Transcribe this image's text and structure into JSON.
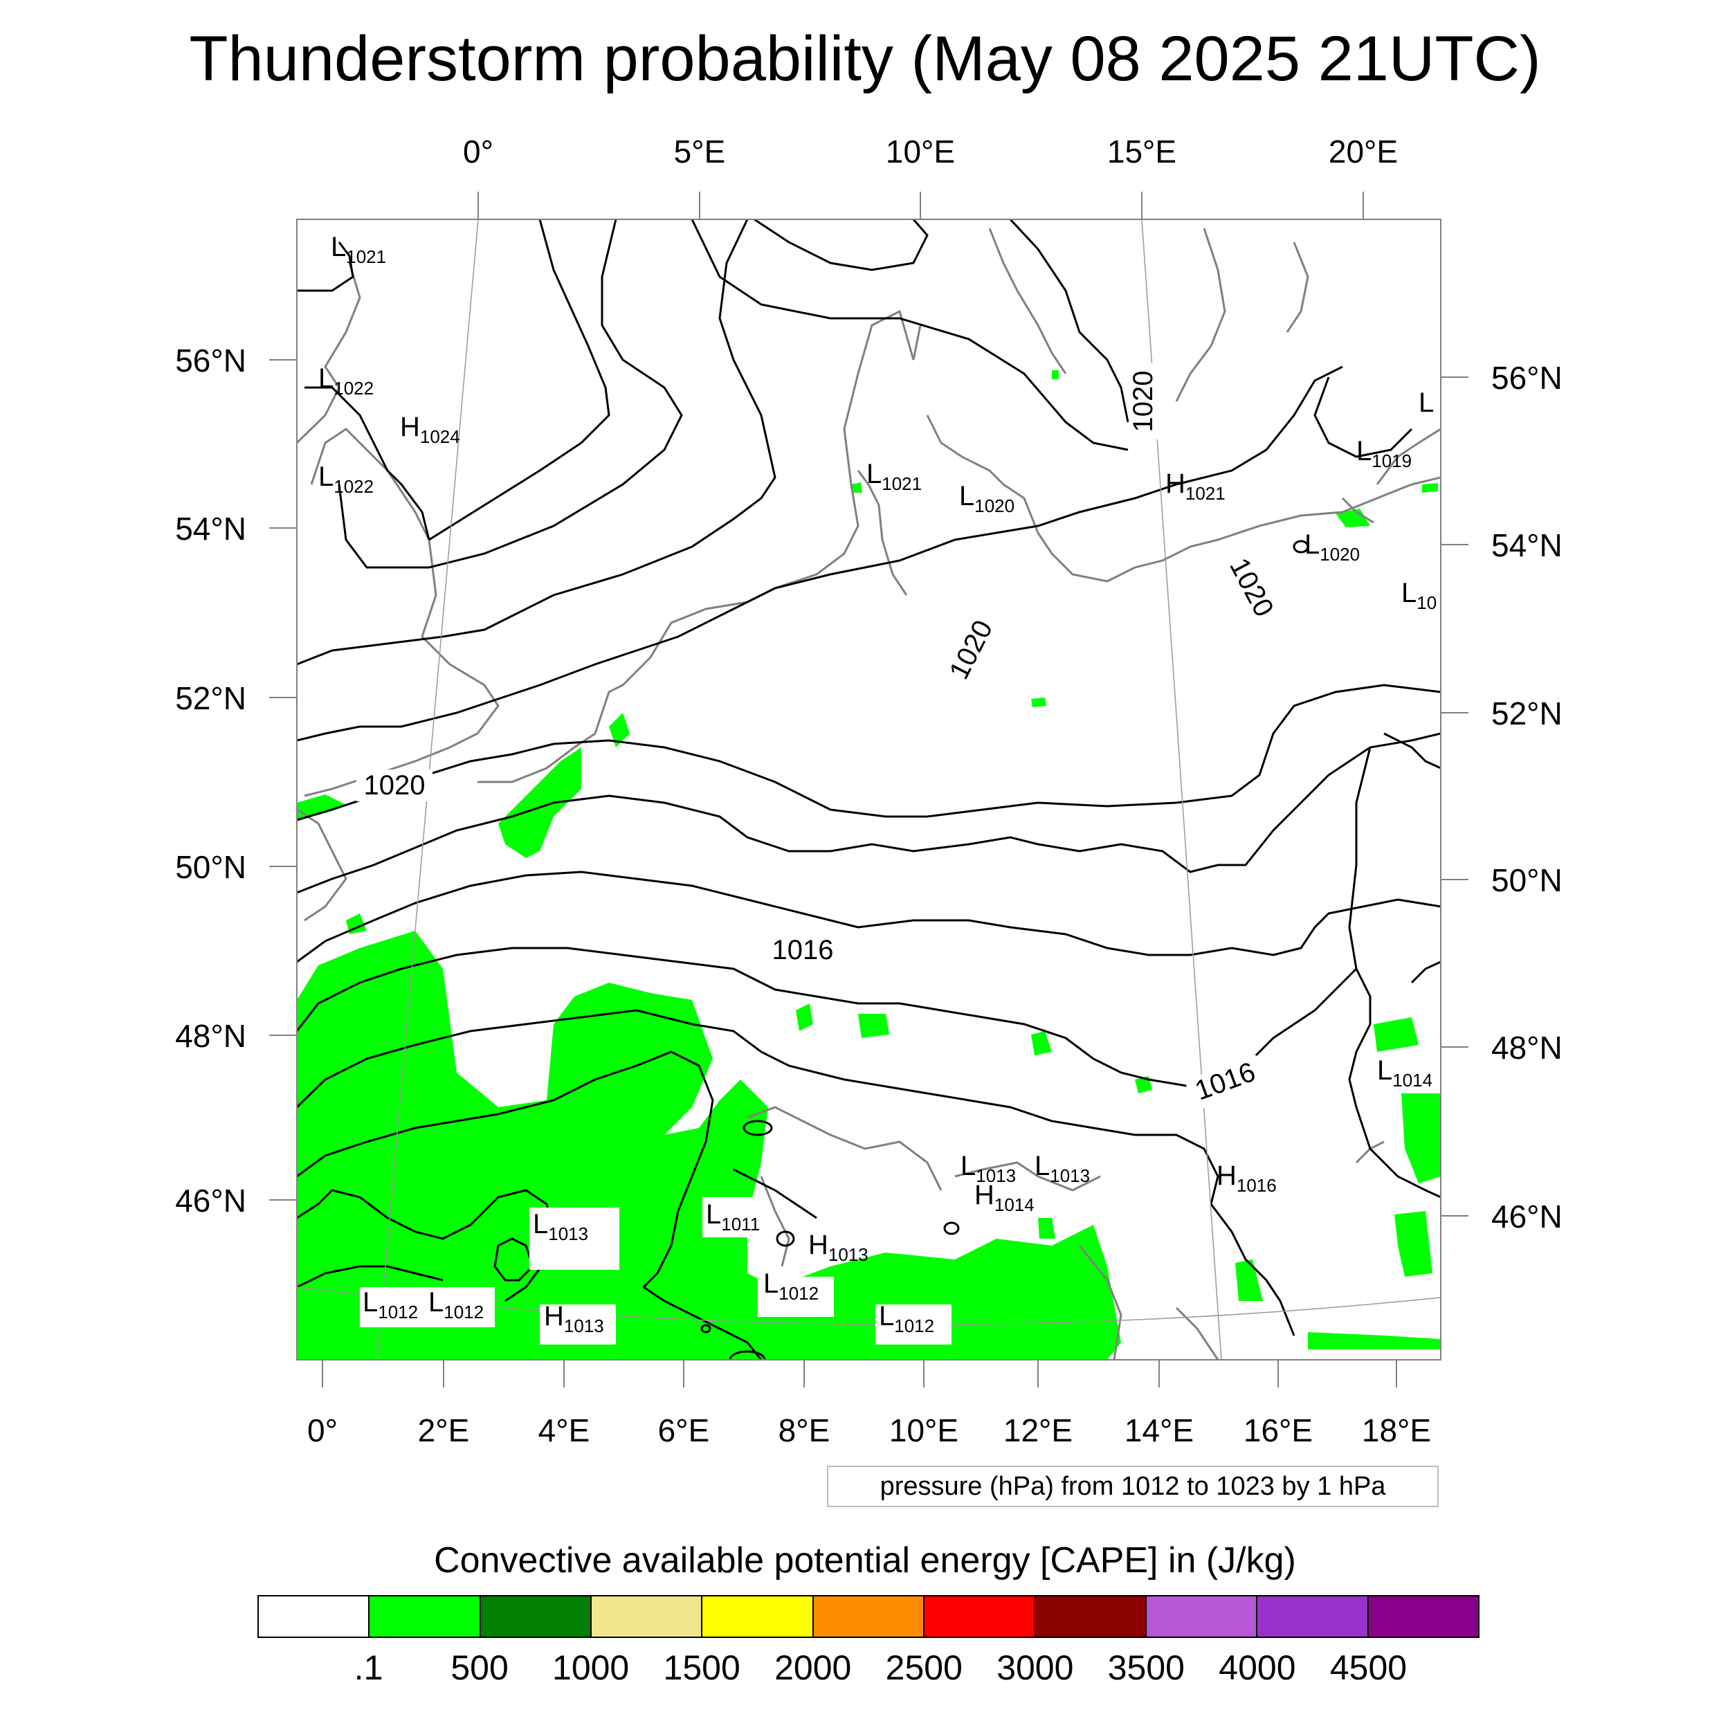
{
  "title": "Thunderstorm probability (May 08 2025 21UTC)",
  "top_lon_labels": [
    "0°",
    "5°E",
    "10°E",
    "15°E",
    "20°E"
  ],
  "bottom_lon_labels": [
    "0°",
    "2°E",
    "4°E",
    "6°E",
    "8°E",
    "10°E",
    "12°E",
    "14°E",
    "16°E",
    "18°E"
  ],
  "left_lat_labels": [
    "56°N",
    "54°N",
    "52°N",
    "50°N",
    "48°N",
    "46°N"
  ],
  "right_lat_labels": [
    "56°N",
    "54°N",
    "52°N",
    "50°N",
    "48°N",
    "46°N"
  ],
  "pressure_systems": [
    {
      "type": "L",
      "value": "1021"
    },
    {
      "type": "L",
      "value": "1022"
    },
    {
      "type": "H",
      "value": "1024"
    },
    {
      "type": "L",
      "value": "1022"
    },
    {
      "type": "L",
      "value": "1021"
    },
    {
      "type": "L",
      "value": "1020"
    },
    {
      "type": "H",
      "value": "1021"
    },
    {
      "type": "L",
      "value": "1019"
    },
    {
      "type": "L",
      "value": "1020"
    },
    {
      "type": "L",
      "value": "10"
    },
    {
      "type": "L",
      "value": ""
    },
    {
      "type": "L",
      "value": "1014"
    },
    {
      "type": "H",
      "value": "1016"
    },
    {
      "type": "L",
      "value": "1013"
    },
    {
      "type": "L",
      "value": "1013"
    },
    {
      "type": "H",
      "value": "1014"
    },
    {
      "type": "L",
      "value": "1011"
    },
    {
      "type": "H",
      "value": "1013"
    },
    {
      "type": "L",
      "value": "1013"
    },
    {
      "type": "L",
      "value": "1012"
    },
    {
      "type": "L",
      "value": "1012"
    },
    {
      "type": "L",
      "value": "1012"
    },
    {
      "type": "H",
      "value": "1013"
    },
    {
      "type": "L",
      "value": "1012"
    }
  ],
  "contour_labels": [
    "1020",
    "1020",
    "1020",
    "1020",
    "1016",
    "1016"
  ],
  "contour_info": "pressure (hPa) from 1012 to 1023 by 1 hPa",
  "legend_title": "Convective available potential energy [CAPE] in (J/kg)",
  "colorbar": {
    "colors": [
      "#ffffff",
      "#00ff00",
      "#007f00",
      "#f0e68c",
      "#ffff00",
      "#ff8c00",
      "#ff0000",
      "#8b0000",
      "#b657d6",
      "#9932cc",
      "#8b008b"
    ],
    "labels": [
      ".1",
      "500",
      "1000",
      "1500",
      "2000",
      "2500",
      "3000",
      "3500",
      "4000",
      "4500"
    ]
  },
  "colors": {
    "cape_low": "#00ff00",
    "isobar": "#000000",
    "coastline": "#808080",
    "grid": "#9a9a9a"
  }
}
